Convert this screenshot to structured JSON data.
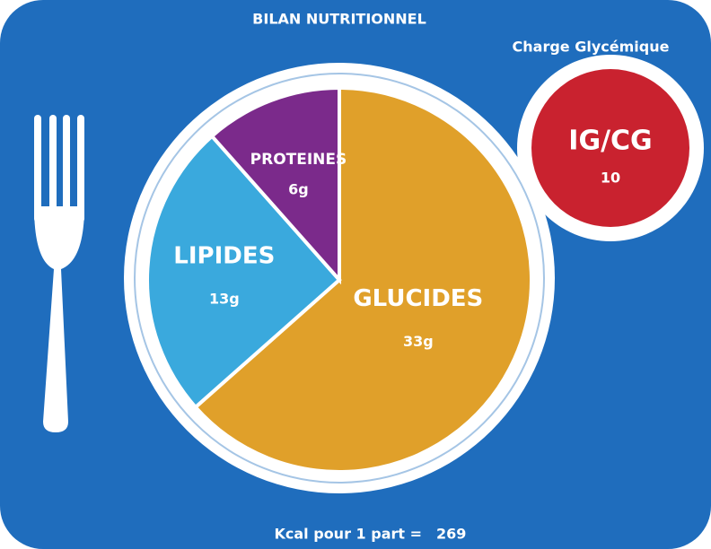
{
  "chart_data": {
    "type": "pie",
    "title": "BILAN NUTRITIONNEL",
    "categories": [
      "GLUCIDES",
      "LIPIDES",
      "PROTEINES"
    ],
    "values": [
      33,
      13,
      6
    ],
    "value_labels": [
      "33g",
      "13g",
      "6g"
    ],
    "colors": [
      "#e0a02a",
      "#3aa9dd",
      "#7b2a8b"
    ]
  },
  "badge": {
    "title": "Charge Glycémique",
    "label": "IG/CG",
    "value": 10
  },
  "footer": {
    "label": "Kcal pour 1 part =",
    "value": 269
  }
}
